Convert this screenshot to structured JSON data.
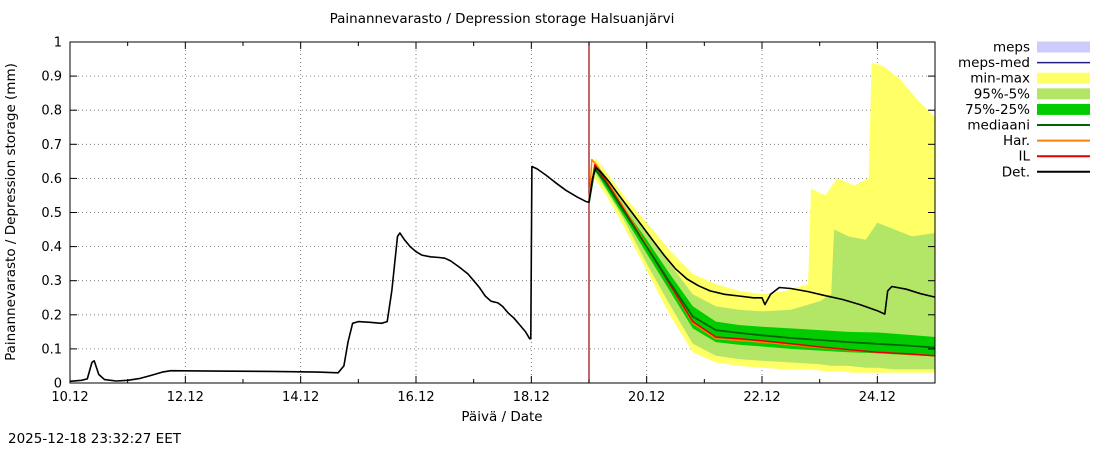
{
  "title": "Painannevarasto / Depression storage   Halsuanjärvi",
  "timestamp": "2025-12-18 23:32:27 EET",
  "axes": {
    "xlabel": "Päivä / Date",
    "ylabel": "Painannevarasto / Depression storage (mm)"
  },
  "colors": {
    "background": "#ffffff",
    "border": "#000000",
    "grid": "#666666",
    "forecast_line": "#990000"
  },
  "legend": [
    {
      "label": "meps",
      "type": "band",
      "color": "#ccccff"
    },
    {
      "label": "meps-med",
      "type": "line",
      "color": "#202080",
      "width": 1.5
    },
    {
      "label": "min-max",
      "type": "band",
      "color": "#ffff66"
    },
    {
      "label": "95%-5%",
      "type": "band",
      "color": "#b3e666"
    },
    {
      "label": "75%-25%",
      "type": "band",
      "color": "#00cc00"
    },
    {
      "label": "mediaani",
      "type": "line",
      "color": "#006600",
      "width": 2
    },
    {
      "label": "Har.",
      "type": "line",
      "color": "#ff8000",
      "width": 2
    },
    {
      "label": "IL",
      "type": "line",
      "color": "#e00000",
      "width": 2
    },
    {
      "label": "Det.",
      "type": "line",
      "color": "#000000",
      "width": 2
    }
  ],
  "chart_data": {
    "type": "line",
    "title": "Painannevarasto / Depression storage   Halsuanjärvi",
    "xlabel": "Päivä / Date",
    "ylabel": "Painannevarasto / Depression storage (mm)",
    "xlim": [
      10,
      25
    ],
    "ylim": [
      0,
      1
    ],
    "grid": true,
    "legend_position": "right",
    "forecast_line_x": 19.0,
    "x_major_ticks": [
      {
        "value": 10,
        "label": "10.12"
      },
      {
        "value": 12,
        "label": "12.12"
      },
      {
        "value": 14,
        "label": "14.12"
      },
      {
        "value": 16,
        "label": "16.12"
      },
      {
        "value": 18,
        "label": "18.12"
      },
      {
        "value": 20,
        "label": "20.12"
      },
      {
        "value": 22,
        "label": "22.12"
      },
      {
        "value": 24,
        "label": "24.12"
      }
    ],
    "x_minor_ticks": [
      11,
      13,
      15,
      17,
      19,
      21,
      23,
      25
    ],
    "y_ticks": [
      {
        "value": 0,
        "label": "0"
      },
      {
        "value": 0.1,
        "label": "0.1"
      },
      {
        "value": 0.2,
        "label": "0.2"
      },
      {
        "value": 0.3,
        "label": "0.3"
      },
      {
        "value": 0.4,
        "label": "0.4"
      },
      {
        "value": 0.5,
        "label": "0.5"
      },
      {
        "value": 0.6,
        "label": "0.6"
      },
      {
        "value": 0.7,
        "label": "0.7"
      },
      {
        "value": 0.8,
        "label": "0.8"
      },
      {
        "value": 0.9,
        "label": "0.9"
      },
      {
        "value": 1,
        "label": "1"
      }
    ],
    "bands": [
      {
        "name": "min-max",
        "color": "#ffff66",
        "x": [
          19.0,
          19.05,
          19.1,
          19.3,
          19.6,
          20.0,
          20.4,
          20.8,
          21.2,
          21.6,
          22.0,
          22.4,
          22.8,
          22.85,
          23.1,
          23.3,
          23.6,
          23.85,
          23.9,
          24.1,
          24.4,
          24.7,
          25.0
        ],
        "upper": [
          0.54,
          0.62,
          0.66,
          0.62,
          0.55,
          0.47,
          0.39,
          0.32,
          0.29,
          0.27,
          0.26,
          0.27,
          0.29,
          0.57,
          0.55,
          0.6,
          0.58,
          0.6,
          0.94,
          0.93,
          0.89,
          0.83,
          0.78
        ],
        "lower": [
          0.53,
          0.58,
          0.6,
          0.55,
          0.46,
          0.33,
          0.2,
          0.09,
          0.06,
          0.05,
          0.045,
          0.04,
          0.04,
          0.04,
          0.035,
          0.035,
          0.03,
          0.03,
          0.03,
          0.03,
          0.03,
          0.03,
          0.03
        ]
      },
      {
        "name": "95%-5%",
        "color": "#b3e666",
        "x": [
          19.0,
          19.1,
          19.3,
          19.6,
          20.0,
          20.4,
          20.8,
          21.2,
          21.6,
          22.0,
          22.5,
          23.0,
          23.2,
          23.25,
          23.5,
          23.8,
          24.0,
          24.3,
          24.6,
          25.0
        ],
        "upper": [
          0.535,
          0.65,
          0.605,
          0.53,
          0.445,
          0.35,
          0.26,
          0.225,
          0.215,
          0.21,
          0.215,
          0.24,
          0.26,
          0.45,
          0.43,
          0.42,
          0.47,
          0.45,
          0.43,
          0.44
        ],
        "lower": [
          0.53,
          0.615,
          0.565,
          0.48,
          0.35,
          0.23,
          0.115,
          0.08,
          0.07,
          0.065,
          0.06,
          0.055,
          0.05,
          0.05,
          0.05,
          0.045,
          0.045,
          0.04,
          0.04,
          0.04
        ]
      },
      {
        "name": "75%-25%",
        "color": "#00cc00",
        "x": [
          19.0,
          19.1,
          19.3,
          19.6,
          20.0,
          20.4,
          20.8,
          21.2,
          21.6,
          22.0,
          22.5,
          23.0,
          23.5,
          24.0,
          24.5,
          25.0
        ],
        "upper": [
          0.535,
          0.64,
          0.59,
          0.515,
          0.42,
          0.32,
          0.225,
          0.18,
          0.17,
          0.165,
          0.16,
          0.155,
          0.15,
          0.148,
          0.142,
          0.135
        ],
        "lower": [
          0.53,
          0.625,
          0.57,
          0.49,
          0.38,
          0.27,
          0.16,
          0.12,
          0.112,
          0.107,
          0.1,
          0.095,
          0.09,
          0.087,
          0.082,
          0.078
        ]
      }
    ],
    "series": [
      {
        "name": "Har.",
        "color": "#ff8000",
        "width": 1.5,
        "x": [
          19.0,
          19.05,
          19.15,
          19.3,
          19.6,
          20.0,
          20.4,
          20.8,
          21.2,
          21.6,
          22.0,
          22.5,
          23.0,
          23.5,
          24.0,
          24.5,
          25.0
        ],
        "y": [
          0.53,
          0.655,
          0.635,
          0.595,
          0.515,
          0.405,
          0.29,
          0.175,
          0.13,
          0.125,
          0.12,
          0.112,
          0.104,
          0.097,
          0.09,
          0.085,
          0.08
        ]
      },
      {
        "name": "IL",
        "color": "#e00000",
        "width": 1.5,
        "x": [
          19.0,
          19.1,
          19.3,
          19.6,
          20.0,
          20.4,
          20.8,
          21.2,
          21.6,
          22.0,
          22.5,
          23.0,
          23.5,
          24.0,
          24.5,
          25.0
        ],
        "y": [
          0.53,
          0.64,
          0.59,
          0.51,
          0.4,
          0.29,
          0.18,
          0.135,
          0.13,
          0.124,
          0.115,
          0.106,
          0.098,
          0.09,
          0.086,
          0.08
        ]
      },
      {
        "name": "mediaani",
        "color": "#006600",
        "width": 1.8,
        "x": [
          19.0,
          19.1,
          19.3,
          19.6,
          20.0,
          20.4,
          20.8,
          21.2,
          21.6,
          22.0,
          22.5,
          23.0,
          23.5,
          24.0,
          24.5,
          25.0
        ],
        "y": [
          0.53,
          0.628,
          0.585,
          0.505,
          0.4,
          0.295,
          0.195,
          0.155,
          0.147,
          0.14,
          0.132,
          0.126,
          0.12,
          0.115,
          0.11,
          0.104
        ]
      },
      {
        "name": "Det.",
        "color": "#000000",
        "width": 1.6,
        "x": [
          10.0,
          10.2,
          10.3,
          10.38,
          10.42,
          10.5,
          10.6,
          10.8,
          11.0,
          11.2,
          11.4,
          11.6,
          11.75,
          12.5,
          13.5,
          14.3,
          14.65,
          14.75,
          14.82,
          14.9,
          15.0,
          15.2,
          15.4,
          15.5,
          15.58,
          15.68,
          15.72,
          15.8,
          15.9,
          16.0,
          16.1,
          16.25,
          16.4,
          16.5,
          16.6,
          16.75,
          16.9,
          17.0,
          17.1,
          17.2,
          17.3,
          17.42,
          17.5,
          17.6,
          17.7,
          17.8,
          17.9,
          17.97,
          17.99,
          18.01,
          18.1,
          18.25,
          18.4,
          18.6,
          18.8,
          18.95,
          19.0,
          19.06,
          19.12,
          19.2,
          19.35,
          19.5,
          19.7,
          19.9,
          20.1,
          20.3,
          20.5,
          20.7,
          20.9,
          21.1,
          21.35,
          21.6,
          21.85,
          22.0,
          22.05,
          22.15,
          22.3,
          22.5,
          22.8,
          23.1,
          23.4,
          23.7,
          24.0,
          24.13,
          24.18,
          24.25,
          24.5,
          24.75,
          25.0
        ],
        "y": [
          0.005,
          0.008,
          0.012,
          0.06,
          0.065,
          0.025,
          0.01,
          0.006,
          0.008,
          0.013,
          0.022,
          0.032,
          0.036,
          0.035,
          0.034,
          0.032,
          0.03,
          0.05,
          0.12,
          0.175,
          0.18,
          0.178,
          0.175,
          0.18,
          0.27,
          0.43,
          0.44,
          0.42,
          0.4,
          0.385,
          0.375,
          0.37,
          0.368,
          0.366,
          0.358,
          0.34,
          0.32,
          0.3,
          0.28,
          0.255,
          0.24,
          0.235,
          0.225,
          0.205,
          0.19,
          0.17,
          0.15,
          0.13,
          0.13,
          0.635,
          0.628,
          0.61,
          0.59,
          0.565,
          0.545,
          0.532,
          0.53,
          0.6,
          0.632,
          0.62,
          0.59,
          0.555,
          0.51,
          0.465,
          0.42,
          0.375,
          0.335,
          0.305,
          0.285,
          0.27,
          0.26,
          0.255,
          0.25,
          0.25,
          0.23,
          0.26,
          0.28,
          0.277,
          0.268,
          0.256,
          0.245,
          0.23,
          0.212,
          0.202,
          0.27,
          0.283,
          0.275,
          0.262,
          0.252
        ]
      }
    ]
  }
}
